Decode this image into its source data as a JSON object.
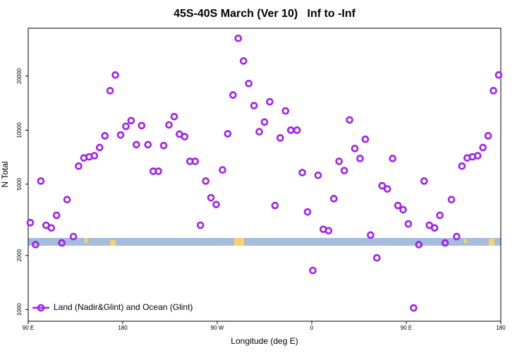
{
  "chart_data": {
    "type": "scatter",
    "title": "45S-40S March (Ver 10)   Inf to -Inf",
    "x_label": "Longitude (deg E)",
    "y_label": "N Total",
    "log_y": true,
    "legend": "bottom-left",
    "x": [
      92,
      97,
      102,
      107,
      112,
      117,
      122,
      127,
      133,
      138,
      143,
      148,
      153,
      158,
      163,
      168,
      173,
      178,
      183,
      188,
      193,
      198,
      204,
      209,
      214,
      219,
      224,
      229,
      234,
      239,
      244,
      249,
      254,
      259,
      264,
      269,
      275,
      280,
      285,
      290,
      295,
      300,
      305,
      310,
      315,
      320,
      325,
      330,
      335,
      340,
      346,
      351,
      356,
      361,
      366,
      371,
      376,
      381,
      386,
      391,
      396,
      401,
      406,
      411,
      416,
      422,
      427,
      432,
      437,
      442,
      447,
      452,
      457,
      462,
      467,
      472,
      477,
      482,
      487,
      493,
      498,
      503,
      508,
      513,
      518,
      523,
      528,
      533,
      538
    ],
    "series": [
      {
        "name": "Land (Nadir&Glint) and Ocean (Glint)",
        "color": "#a020f0",
        "values": [
          3050,
          2300,
          5200,
          2950,
          2850,
          3350,
          2350,
          4100,
          2550,
          6300,
          7000,
          7100,
          7200,
          8000,
          9300,
          16600,
          20300,
          9400,
          10500,
          11300,
          8300,
          10600,
          8300,
          5900,
          5900,
          8200,
          10700,
          11900,
          9500,
          9200,
          6700,
          6700,
          2950,
          5200,
          4200,
          3850,
          6000,
          9550,
          15700,
          32500,
          24300,
          18200,
          13700,
          9800,
          11100,
          14400,
          3800,
          9050,
          12800,
          10000,
          10000,
          5800,
          3500,
          1650,
          5600,
          2800,
          2750,
          4150,
          6700,
          5950,
          11400,
          7900,
          6950,
          8900,
          2600,
          1940,
          4900,
          4700,
          6950,
          3800,
          3600,
          3000,
          1020,
          2300,
          5200,
          2950,
          2850,
          3350,
          2350,
          4100,
          2550,
          6300,
          7000,
          7100,
          7200,
          8000,
          9300,
          16600,
          20300
        ]
      }
    ],
    "xlim": [
      90,
      540
    ],
    "xticks": [
      {
        "value": 90,
        "label": "90 E"
      },
      180,
      {
        "value": 270,
        "label": "90 W"
      },
      {
        "value": 360,
        "label": "0"
      },
      {
        "value": 450,
        "label": "90 E"
      },
      {
        "value": 540,
        "label": "180"
      }
    ],
    "ylim": [
      860,
      37000
    ],
    "yticks": [
      1000,
      2000,
      5000,
      10000,
      20000
    ]
  }
}
